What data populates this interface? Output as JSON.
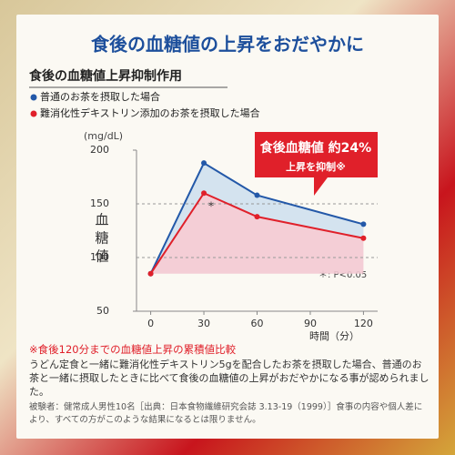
{
  "chart_data": {
    "type": "line",
    "title": "食後の血糖値の上昇をおだやかに",
    "subtitle": "食後の血糖値上昇抑制作用",
    "y_unit": "(mg/dL)",
    "y_label": "血糖値",
    "x_label": "時間（分）",
    "x": [
      0,
      30,
      60,
      120
    ],
    "series": [
      {
        "name": "普通のお茶を摂取した場合",
        "color": "#2358a8",
        "values": [
          85,
          188,
          158,
          131
        ]
      },
      {
        "name": "難消化性デキストリン添加のお茶を摂取した場合",
        "color": "#e0202a",
        "values": [
          85,
          160,
          138,
          118
        ]
      }
    ],
    "xlim": [
      -8,
      128
    ],
    "xticks": [
      0,
      30,
      60,
      90,
      120
    ],
    "ylim": [
      50,
      200
    ],
    "yticks": [
      50,
      100,
      150,
      200
    ],
    "grid": true,
    "callout": [
      "食後血糖値 約24%",
      "上昇を抑制※"
    ],
    "significance_mark": "*",
    "significance_note": "＊: P<0.05",
    "footnote": "※食後120分までの血糖値上昇の累積値比較",
    "description": "うどん定食と一緒に難消化性デキストリン5gを配合したお茶を摂取した場合、普通のお茶と一緒に摂取したときに比べて食後の血糖値の上昇がおだやかになる事が認められました。",
    "disclaimer": "被験者：健常成人男性10名［出典：日本食物繊維研究会誌 3.13-19（1999）］食事の内容や個人差により、すべての方がこのような結果になるとは限りません。"
  }
}
